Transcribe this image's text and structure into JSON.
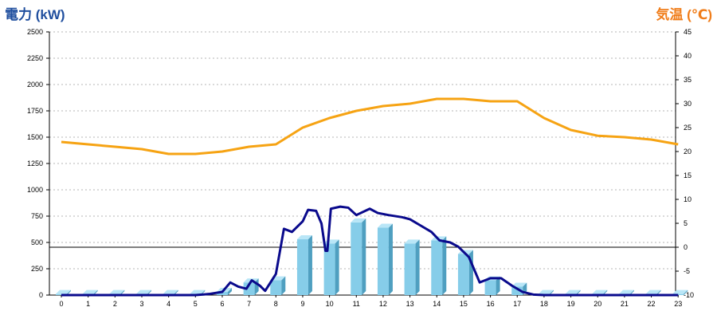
{
  "chart_data": {
    "type": "bar",
    "left_axis_title": "電力 (kW)",
    "right_axis_title": "気温 (℃)",
    "colors": {
      "left_title": "#1f4e9e",
      "right_title": "#f07d1a",
      "bars": "#86cde9",
      "temperature": "#f6a313",
      "power_line": "#0a0a8c",
      "grid": "#b4b4b4",
      "zero_line": "#000000"
    },
    "categories": [
      "0",
      "1",
      "2",
      "3",
      "4",
      "5",
      "6",
      "7",
      "8",
      "9",
      "10",
      "11",
      "12",
      "13",
      "14",
      "15",
      "16",
      "17",
      "18",
      "19",
      "20",
      "21",
      "22",
      "23"
    ],
    "y_left": {
      "min": 0,
      "max": 2500,
      "ticks": [
        0,
        250,
        500,
        750,
        1000,
        1250,
        1500,
        1750,
        2000,
        2250,
        2500
      ]
    },
    "y_right": {
      "min": -10,
      "max": 45,
      "ticks": [
        -10,
        -5,
        0,
        5,
        10,
        15,
        20,
        25,
        30,
        35,
        40,
        45
      ]
    },
    "grid": true,
    "bar_series": {
      "axis": "left",
      "values": [
        10,
        10,
        10,
        10,
        10,
        10,
        30,
        120,
        140,
        530,
        490,
        690,
        640,
        490,
        520,
        390,
        140,
        80,
        10,
        10,
        10,
        10,
        10,
        10
      ]
    },
    "temperature_series": {
      "axis": "right",
      "values": [
        22,
        21.5,
        21,
        20.5,
        19.5,
        19.5,
        20,
        21,
        21.5,
        25,
        27,
        28.5,
        29.5,
        30,
        31,
        31,
        30.5,
        30.5,
        27,
        24.5,
        23.3,
        23,
        22.5,
        21.5
      ]
    },
    "power_line_series": {
      "axis": "left",
      "points": [
        [
          0,
          0
        ],
        [
          1,
          0
        ],
        [
          2,
          0
        ],
        [
          3,
          0
        ],
        [
          4,
          0
        ],
        [
          5,
          0
        ],
        [
          5.5,
          10
        ],
        [
          6,
          30
        ],
        [
          6.3,
          120
        ],
        [
          6.6,
          80
        ],
        [
          6.9,
          60
        ],
        [
          7.1,
          140
        ],
        [
          7.4,
          90
        ],
        [
          7.6,
          40
        ],
        [
          8.0,
          200
        ],
        [
          8.3,
          630
        ],
        [
          8.6,
          600
        ],
        [
          9.0,
          700
        ],
        [
          9.2,
          810
        ],
        [
          9.5,
          800
        ],
        [
          9.7,
          680
        ],
        [
          9.85,
          420
        ],
        [
          9.92,
          420
        ],
        [
          10.05,
          820
        ],
        [
          10.4,
          840
        ],
        [
          10.7,
          830
        ],
        [
          11.0,
          760
        ],
        [
          11.5,
          820
        ],
        [
          11.8,
          780
        ],
        [
          12.2,
          760
        ],
        [
          12.7,
          740
        ],
        [
          13.0,
          720
        ],
        [
          13.4,
          660
        ],
        [
          13.8,
          600
        ],
        [
          14.1,
          520
        ],
        [
          14.5,
          500
        ],
        [
          14.8,
          460
        ],
        [
          15.2,
          360
        ],
        [
          15.6,
          120
        ],
        [
          16.0,
          160
        ],
        [
          16.4,
          160
        ],
        [
          16.8,
          90
        ],
        [
          17.2,
          30
        ],
        [
          17.6,
          5
        ],
        [
          18.0,
          0
        ],
        [
          19,
          0
        ],
        [
          20,
          0
        ],
        [
          21,
          0
        ],
        [
          22,
          0
        ],
        [
          23,
          0
        ]
      ]
    }
  }
}
